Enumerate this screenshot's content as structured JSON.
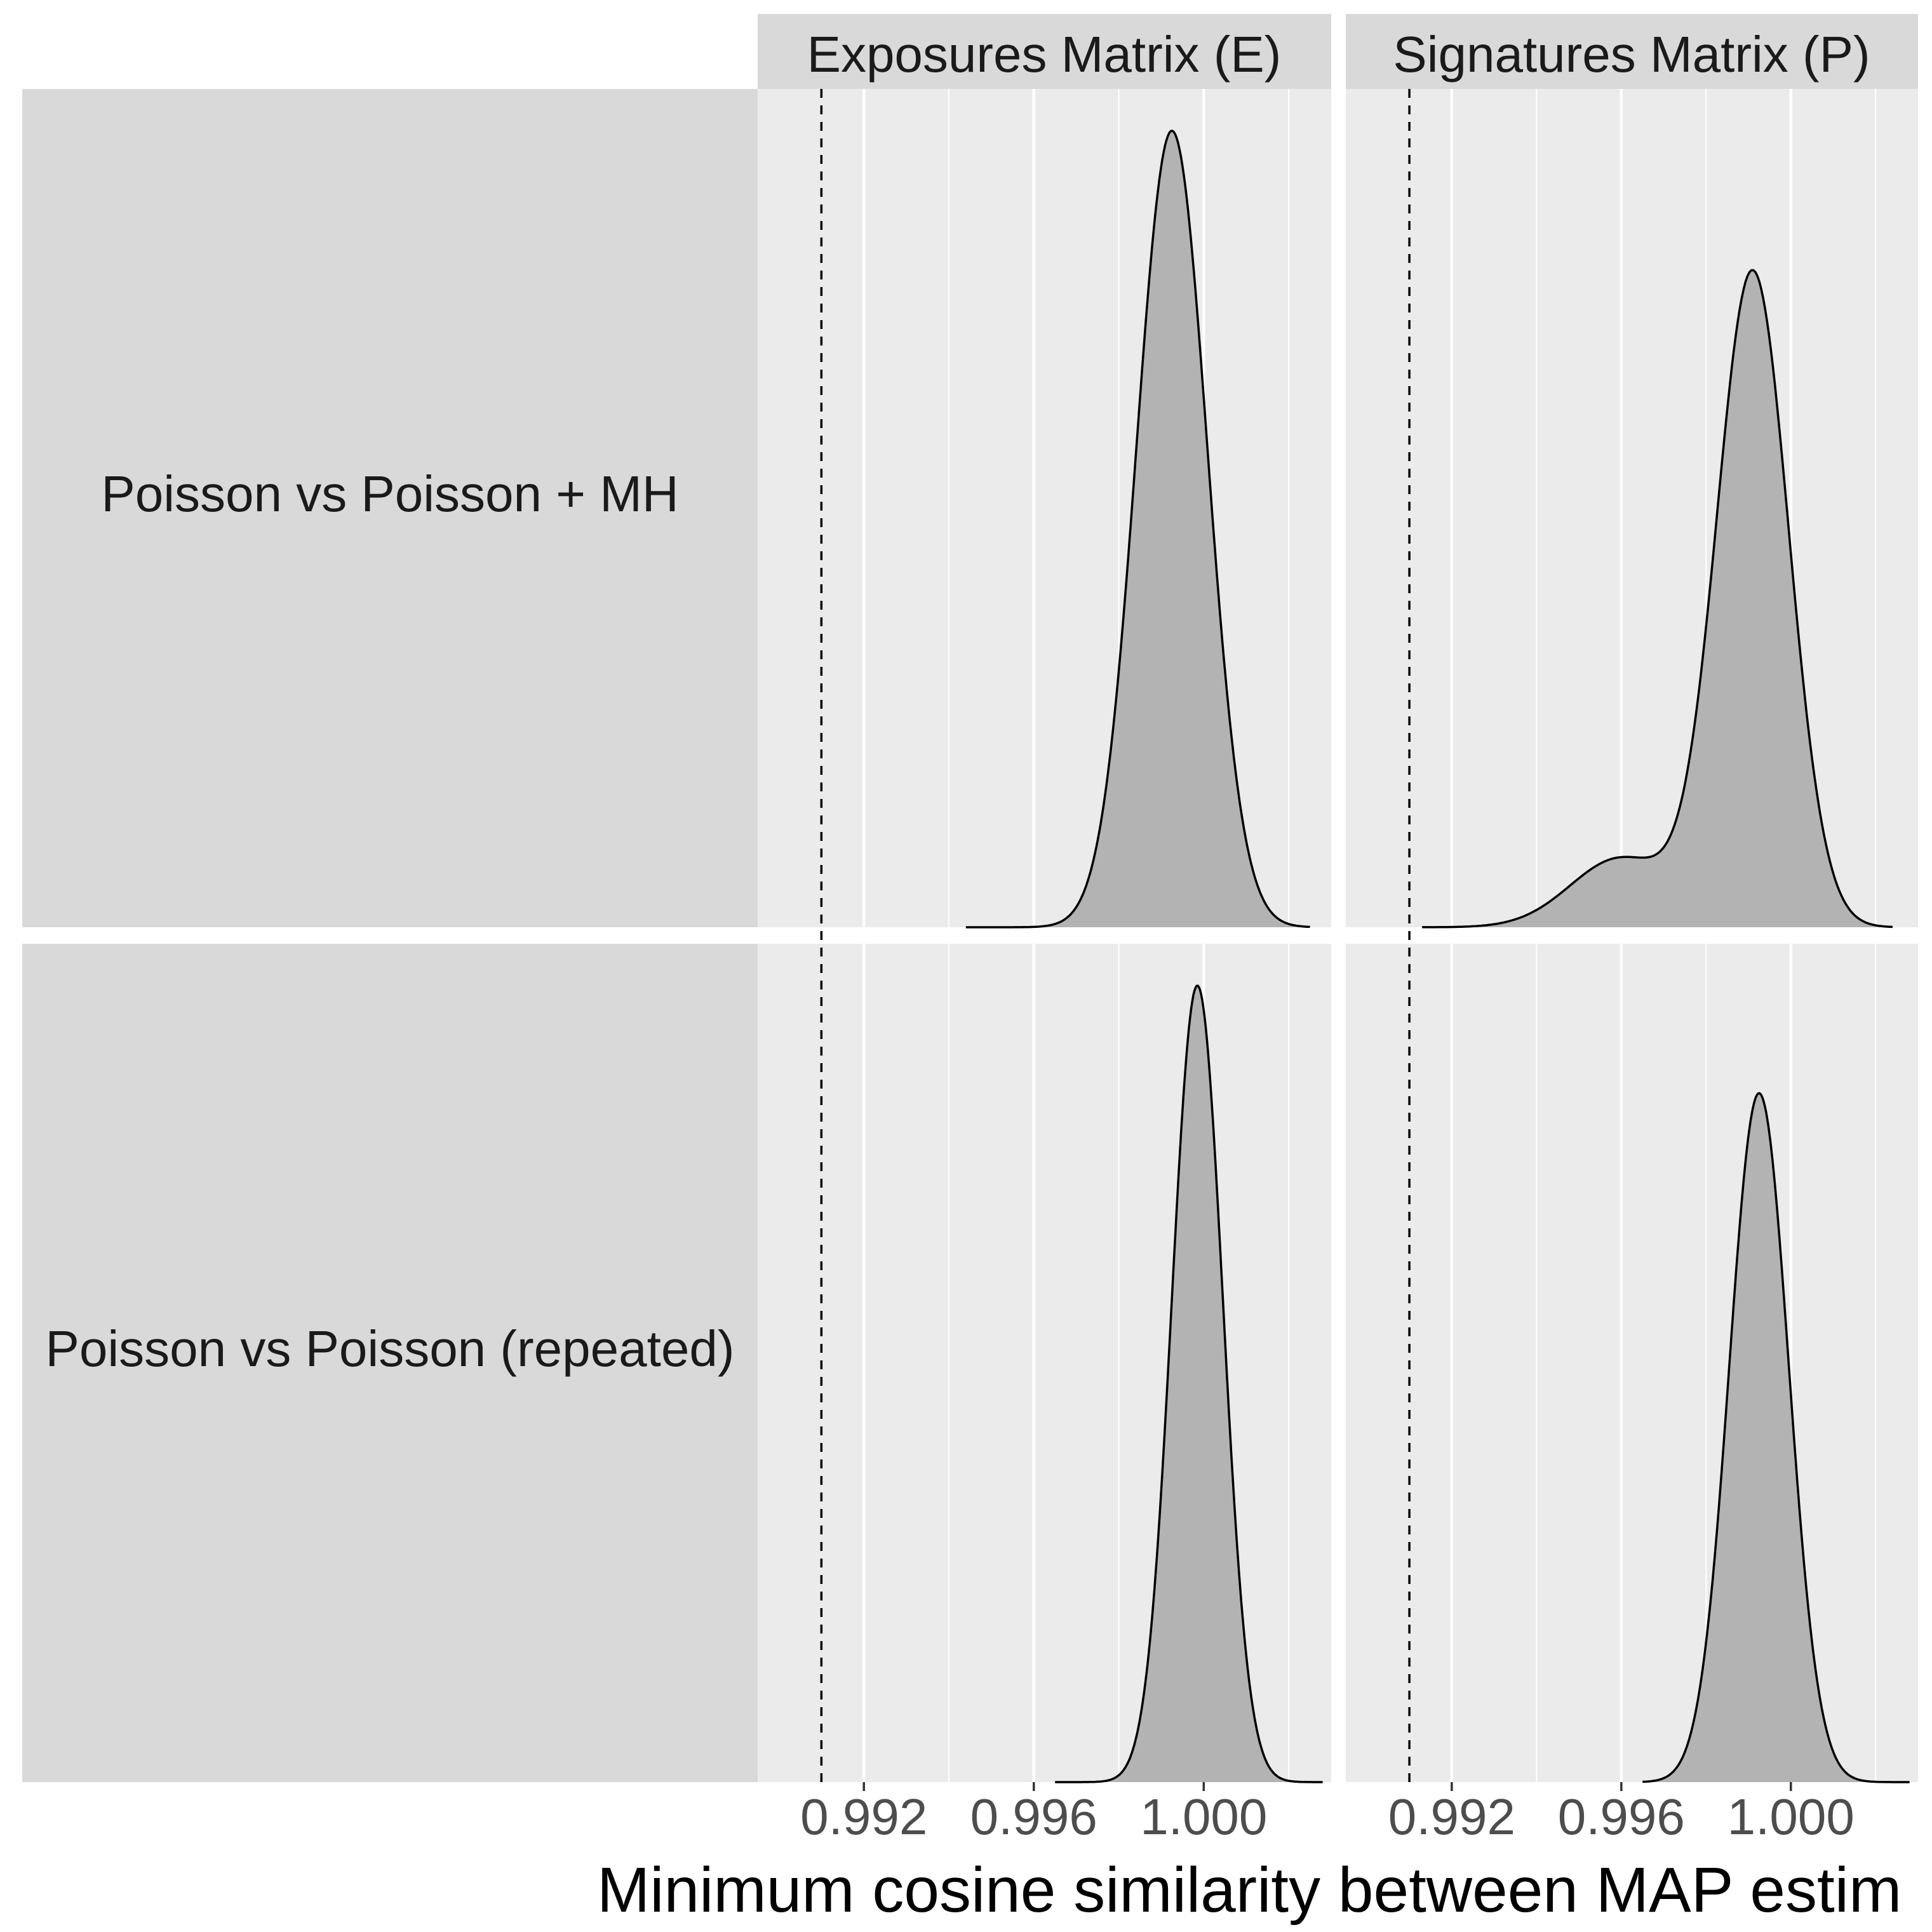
{
  "colors": {
    "panel_bg": "#ebebeb",
    "strip_bg": "#d9d9d9",
    "gridline": "#ffffff",
    "density_fill": "#b3b3b3",
    "density_line": "#000000",
    "reference_line": "#000000"
  },
  "chart_data": {
    "type": "area",
    "subtype": "density",
    "facet_columns": [
      "Exposures Matrix (E)",
      "Signatures Matrix (P)"
    ],
    "facet_rows": [
      "Poisson vs Poisson + MH",
      "Poisson vs Poisson (repeated)"
    ],
    "xlabel": "Minimum cosine similarity between MAP estim",
    "xlim": [
      0.9895,
      1.003
    ],
    "x_ticks": [
      0.992,
      0.996,
      1.0
    ],
    "x_tick_labels": [
      "0.992",
      "0.996",
      "1.000"
    ],
    "x_minor_gridlines": [
      0.994,
      0.998,
      1.002
    ],
    "reference_line_x": 0.991,
    "reference_line_style": "dashed",
    "grid": true,
    "panels": [
      {
        "row": "Poisson vs Poisson + MH",
        "column": "Exposures Matrix (E)",
        "x_range": [
          0.9944,
          1.0025
        ],
        "peak_height": 1.0,
        "components": [
          {
            "mean": 0.99925,
            "sd": 0.00083,
            "weight": 1.0
          }
        ]
      },
      {
        "row": "Poisson vs Poisson + MH",
        "column": "Signatures Matrix (P)",
        "x_range": [
          0.9913,
          1.0024
        ],
        "peak_height": 0.825,
        "components": [
          {
            "mean": 0.9991,
            "sd": 0.00085,
            "weight": 0.87
          },
          {
            "mean": 0.996,
            "sd": 0.0012,
            "weight": 0.13
          }
        ]
      },
      {
        "row": "Poisson vs Poisson (repeated)",
        "column": "Exposures Matrix (E)",
        "x_range": [
          0.9965,
          1.0028
        ],
        "peak_height": 1.0,
        "components": [
          {
            "mean": 0.99985,
            "sd": 0.0006,
            "weight": 1.0
          }
        ]
      },
      {
        "row": "Poisson vs Poisson (repeated)",
        "column": "Signatures Matrix (P)",
        "x_range": [
          0.9965,
          1.0028
        ],
        "peak_height": 0.865,
        "components": [
          {
            "mean": 0.99925,
            "sd": 0.0007,
            "weight": 1.0
          }
        ]
      }
    ]
  }
}
